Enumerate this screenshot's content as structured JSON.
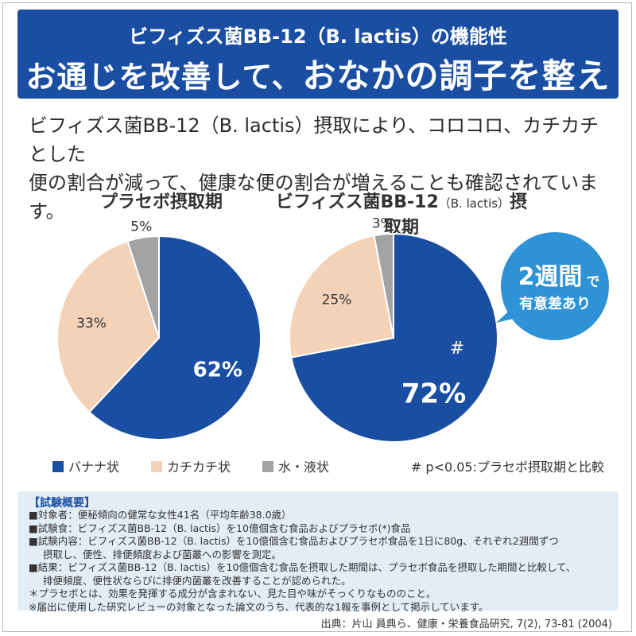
{
  "header": {
    "subtitle": "ビフィズス菌BB-12（B. lactis）の機能性",
    "title_part1": "お通じを改善して、",
    "title_part2": "おなかの調子を整える"
  },
  "intro": {
    "line1": "ビフィズス菌BB-12（B. lactis）摂取により、コロコロ、カチカチとした",
    "line2": "便の割合が減って、健康な便の割合が増えることも確認されています。"
  },
  "colors": {
    "header_bg": "#1a4ea2",
    "banana": "#1a4ea2",
    "hard": "#f4d2b8",
    "liquid": "#a3a3a3",
    "bubble": "#2e93d6",
    "box_bg": "#e3edf6"
  },
  "chart_data": [
    {
      "type": "pie",
      "title": "プラセボ摂取期",
      "slices": [
        {
          "label": "バナナ状",
          "value": 62,
          "text": "62%"
        },
        {
          "label": "カチカチ状",
          "value": 33,
          "text": "33%"
        },
        {
          "label": "水・液状",
          "value": 5,
          "text": "5%"
        }
      ]
    },
    {
      "type": "pie",
      "title": "ビフィズス菌BB-12",
      "title_small": "（B. lactis）",
      "title_end": "摂取期",
      "slices": [
        {
          "label": "バナナ状",
          "value": 72,
          "text": "72%"
        },
        {
          "label": "カチカチ状",
          "value": 25,
          "text": "25%"
        },
        {
          "label": "水・液状",
          "value": 3,
          "text": "3%"
        }
      ],
      "annotation": "#"
    }
  ],
  "bubble": {
    "line1": "2週間",
    "line1_suffix": "で",
    "line2": "有意差あり"
  },
  "legend": {
    "items": [
      "バナナ状",
      "カチカチ状",
      "水・液状"
    ],
    "note": "# p<0.05:プラセボ摂取期と比較"
  },
  "summary": {
    "title": "【試験概要】",
    "lines": [
      "■対象者：便秘傾向の健常な女性41名（平均年齢38.0歳）",
      "■試験食：ビフィズス菌BB-12（B. lactis）を10億個含む食品およびプラセボ(*)食品",
      "■試験内容：ビフィズス菌BB-12（B. lactis）を10億個含む食品およびプラセボ食品を1日に80g、それぞれ2週間ずつ",
      "摂取し、便性、排便頻度および菌叢への影響を測定。",
      "■結果：ビフィズス菌BB-12（B. lactis）を10億個含む食品を摂取した期間は、プラセボ食品を摂取した期間と比較して、",
      "排便頻度、便性状ならびに排便内菌叢を改善することが認められた。",
      "＊プラセボとは、効果を発揮する成分が含まれない、見た目や味がそっくりなもののこと。",
      "※届出に使用した研究レビューの対象となった論文のうち、代表的な1報を事例として掲示しています。"
    ]
  },
  "citation": "出典：片山 員典ら、健康・栄養食品研究, 7(2), 73-81 (2004)"
}
